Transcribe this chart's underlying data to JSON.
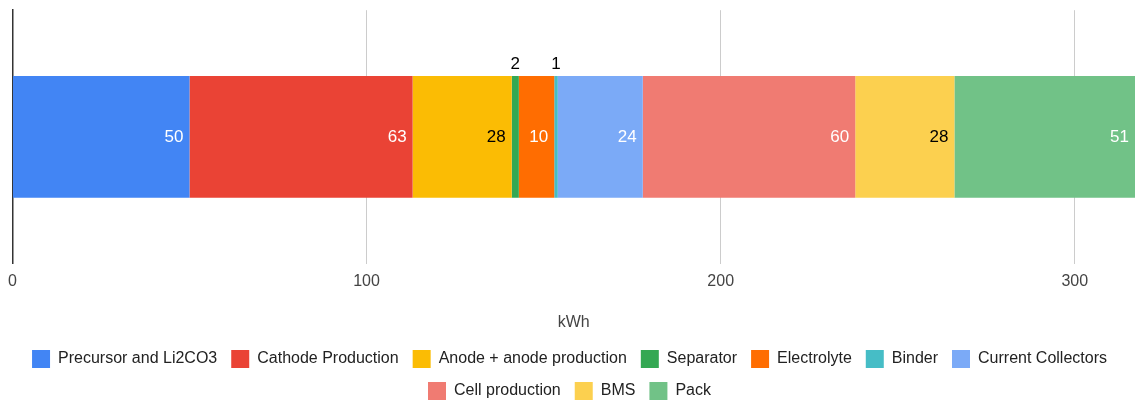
{
  "chart_data": {
    "type": "bar",
    "orientation": "horizontal",
    "stacked": true,
    "xlabel": "kWh",
    "categories": [
      null
    ],
    "series": [
      {
        "name": "Precursor and Li2CO3",
        "color": "#4285f4",
        "values": [
          50
        ]
      },
      {
        "name": "Cathode Production",
        "color": "#ea4335",
        "values": [
          63
        ]
      },
      {
        "name": "Anode + anode production",
        "color": "#fbbc04",
        "values": [
          28
        ]
      },
      {
        "name": "Separator",
        "color": "#34a853",
        "values": [
          2
        ]
      },
      {
        "name": "Electrolyte",
        "color": "#ff6d01",
        "values": [
          10
        ]
      },
      {
        "name": "Binder",
        "color": "#46bdc6",
        "values": [
          1
        ]
      },
      {
        "name": "Current Collectors",
        "color": "#7baaf7",
        "values": [
          24
        ]
      },
      {
        "name": "Cell production",
        "color": "#f07b72",
        "values": [
          60
        ]
      },
      {
        "name": "BMS",
        "color": "#fcd04f",
        "values": [
          28
        ]
      },
      {
        "name": "Pack",
        "color": "#71c287",
        "values": [
          51
        ]
      }
    ],
    "xlim": [
      0,
      317
    ],
    "xticks": [
      0,
      100,
      200,
      300
    ],
    "grid": "x",
    "legend": "bottom",
    "data_labels": true
  }
}
